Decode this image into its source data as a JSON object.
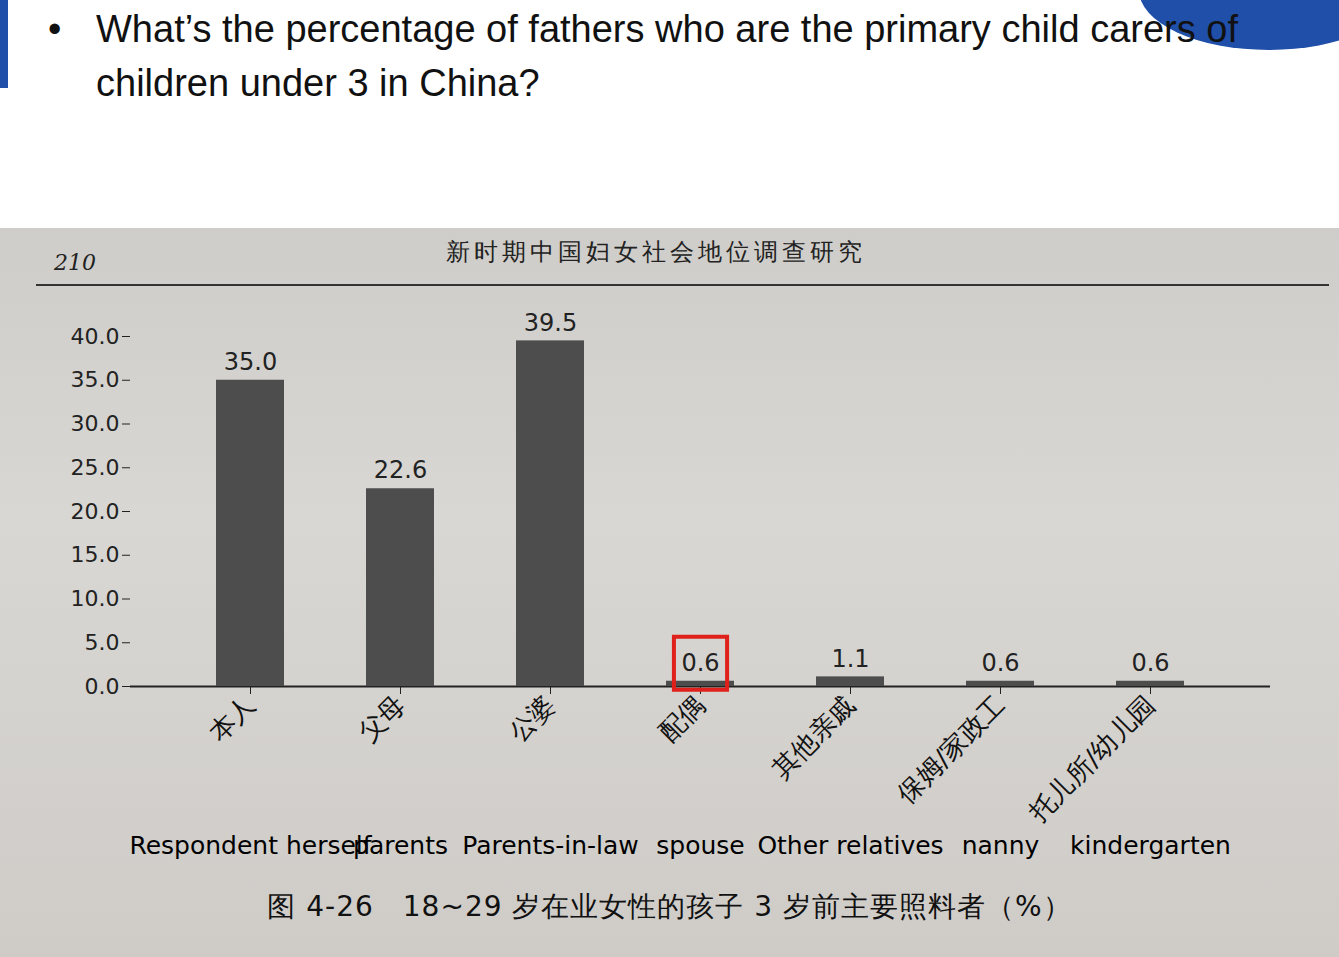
{
  "slide": {
    "question": "What’s the percentage of fathers who are the primary child carers of children under 3 in China?"
  },
  "header": {
    "book_title": "新时期中国妇女社会地位调查研究",
    "page": "210"
  },
  "chart_data": {
    "type": "bar",
    "title": "图 4-26　18~29 岁在业女性的孩子 3 岁前主要照料者（%）",
    "categories": [
      "本人",
      "父母",
      "公婆",
      "配偶",
      "其他亲戚",
      "保姆/家政工",
      "托儿所/幼儿园"
    ],
    "translations": [
      "Respondent herself",
      "parents",
      "Parents-in-law",
      "spouse",
      "Other relatives",
      "nanny",
      "kindergarten"
    ],
    "values": [
      35.0,
      22.6,
      39.5,
      0.6,
      1.1,
      0.6,
      0.6
    ],
    "value_labels": [
      "35.0",
      "22.6",
      "39.5",
      "0.6",
      "1.1",
      "0.6",
      "0.6"
    ],
    "color": "#4d4d4d",
    "ylim": [
      0,
      40
    ],
    "yticks": [
      {
        "value": 0,
        "label": "0.0"
      },
      {
        "value": 5,
        "label": "5.0"
      },
      {
        "value": 10,
        "label": "10.0"
      },
      {
        "value": 15,
        "label": "15.0"
      },
      {
        "value": 20,
        "label": "20.0"
      },
      {
        "value": 25,
        "label": "25.0"
      },
      {
        "value": 30,
        "label": "30.0"
      },
      {
        "value": 35,
        "label": "35.0"
      },
      {
        "value": 40,
        "label": "40.0"
      }
    ],
    "grid": false,
    "data_labels": true,
    "annotations": [
      {
        "category": "配偶",
        "color": "#e0201b"
      }
    ]
  }
}
